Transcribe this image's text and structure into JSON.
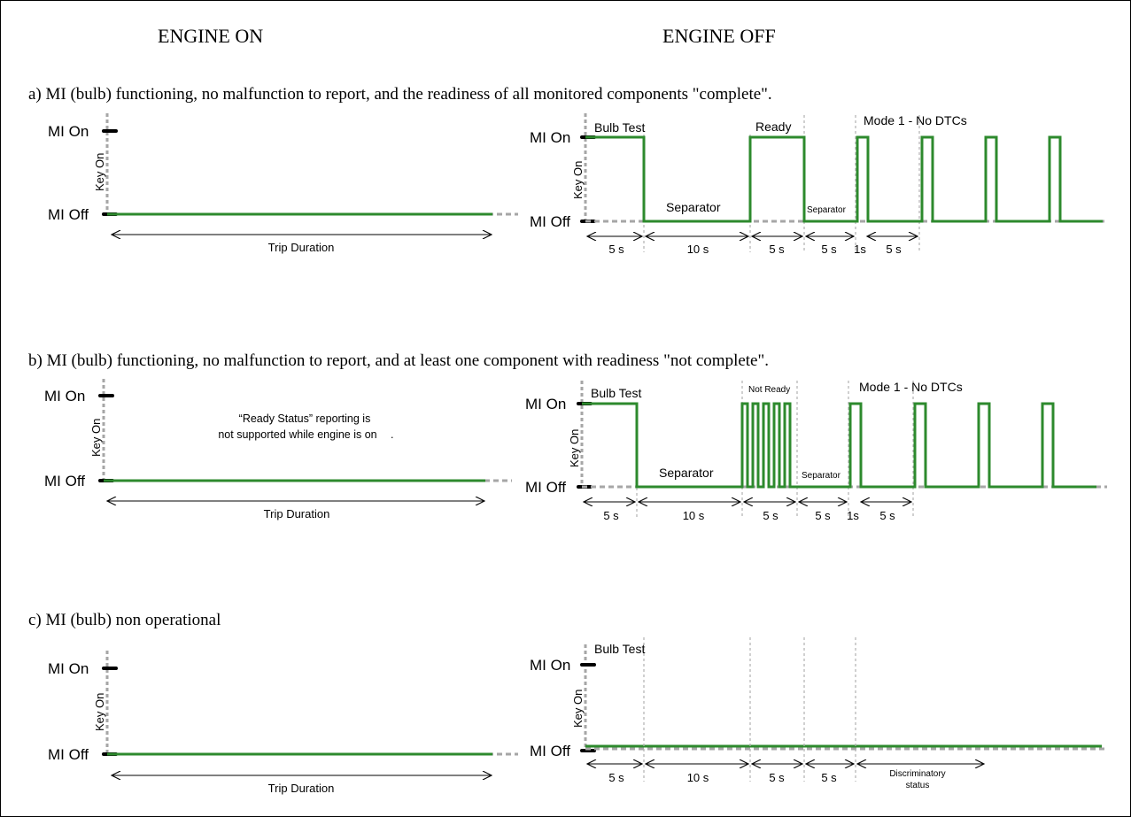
{
  "headers": {
    "engine_on": "ENGINE ON",
    "engine_off": "ENGINE OFF"
  },
  "axis": {
    "mi_on": "MI On",
    "mi_off": "MI Off",
    "key_on": "Key On"
  },
  "trip_duration": "Trip Duration",
  "sections": {
    "a": {
      "caption": "a) MI (bulb) functioning, no malfunction to report, and the readiness of all monitored components \"complete\".",
      "bulb_test": "Bulb Test",
      "separator": "Separator",
      "ready": "Ready",
      "separator_small": "Separator",
      "mode1": "Mode 1 - No DTCs",
      "durations": [
        "5 s",
        "10 s",
        "5 s",
        "5 s",
        "1s",
        "5 s"
      ]
    },
    "b": {
      "caption": "b) MI (bulb) functioning, no malfunction to report, and at least one component with readiness \"not complete\".",
      "note_line1": "“Ready Status” reporting is",
      "note_line2": "not supported while engine is on",
      "note_dot": ".",
      "bulb_test": "Bulb Test",
      "separator": "Separator",
      "not_ready": "Not Ready",
      "separator_small": "Separator",
      "mode1": "Mode 1 - No DTCs",
      "durations": [
        "5 s",
        "10 s",
        "5 s",
        "5 s",
        "1s",
        "5 s"
      ]
    },
    "c": {
      "caption": "c) MI (bulb) non operational",
      "bulb_test": "Bulb Test",
      "durations": [
        "5 s",
        "10 s",
        "5 s",
        "5 s"
      ],
      "discriminatory_line1": "Discriminatory",
      "discriminatory_line2": "status"
    }
  },
  "colors": {
    "signal": "#2d8a2d",
    "baseline": "#a6a6a6",
    "frame": "#000000"
  }
}
